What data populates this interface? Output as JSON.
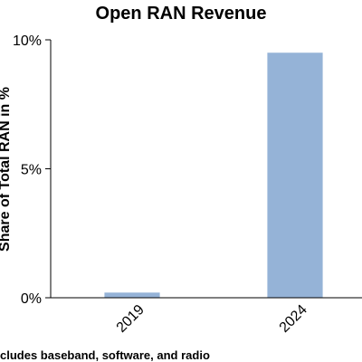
{
  "chart_data": {
    "type": "bar",
    "title": "Open RAN Revenue",
    "ylabel": "Share of Total RAN in %",
    "xlabel": "",
    "categories": [
      "2019",
      "2024"
    ],
    "values": [
      0.2,
      9.5
    ],
    "ylim": [
      0,
      10
    ],
    "yticks": [
      0,
      5,
      10
    ],
    "ytick_labels": [
      "0%",
      "5%",
      "10%"
    ],
    "bar_color": "#95b3d7",
    "grid": false,
    "footnote": "cludes baseband, software, and radio"
  }
}
